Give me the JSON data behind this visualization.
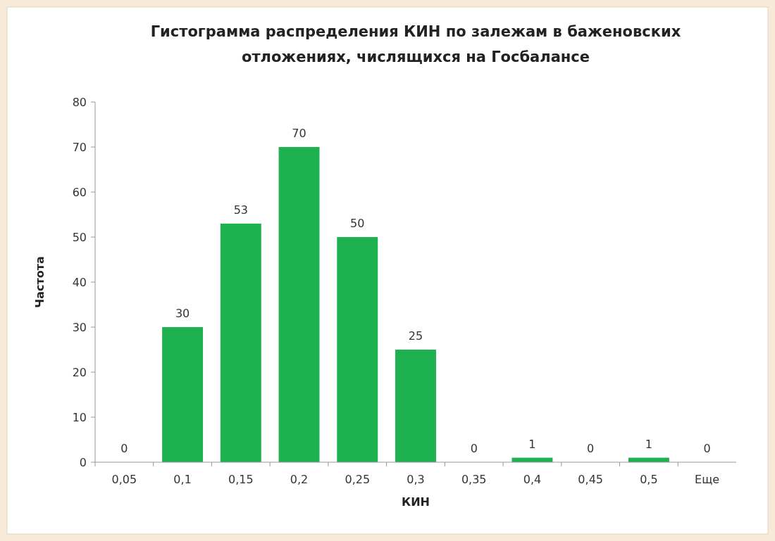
{
  "chart_data": {
    "type": "bar",
    "title": "Гистограмма распределения КИН по залежам в баженовских отложениях, числящихся на Госбалансе",
    "xlabel": "КИН",
    "ylabel": "Частота",
    "categories": [
      "0,05",
      "0,1",
      "0,15",
      "0,2",
      "0,25",
      "0,3",
      "0,35",
      "0,4",
      "0,45",
      "0,5",
      "Еще"
    ],
    "values": [
      0,
      30,
      53,
      70,
      50,
      25,
      0,
      1,
      0,
      1,
      0
    ],
    "color": "#1db14f",
    "ylim": [
      0,
      80
    ],
    "yticks": [
      0,
      10,
      20,
      30,
      40,
      50,
      60,
      70,
      80
    ],
    "grid": false,
    "data_labels": true
  }
}
